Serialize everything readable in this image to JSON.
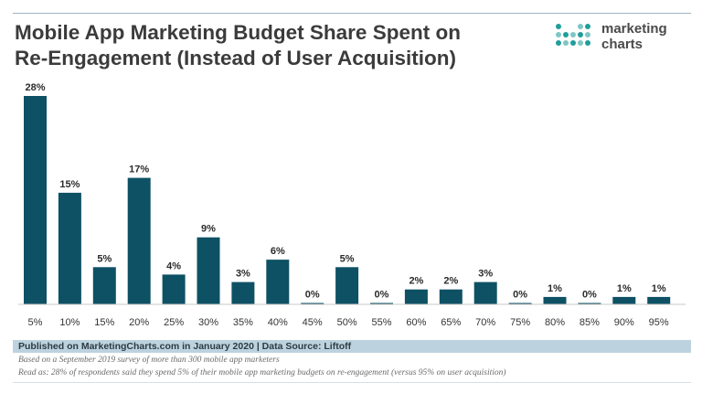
{
  "header": {
    "title_line1": "Mobile App Marketing Budget Share Spent on",
    "title_line2": "Re-Engagement (Instead of User Acquisition)"
  },
  "logo": {
    "line1": "marketing",
    "line2": "charts"
  },
  "colors": {
    "bar": "#0e5165",
    "logo_teal": "#1f9e9a",
    "logo_light": "#7fc6c4",
    "footer_bar": "#bcd3df"
  },
  "chart_data": {
    "type": "bar",
    "title": "Mobile App Marketing Budget Share Spent on Re-Engagement (Instead of User Acquisition)",
    "xlabel": "",
    "ylabel": "",
    "ylim": [
      0,
      28
    ],
    "categories": [
      "5%",
      "10%",
      "15%",
      "20%",
      "25%",
      "30%",
      "35%",
      "40%",
      "45%",
      "50%",
      "55%",
      "60%",
      "65%",
      "70%",
      "75%",
      "80%",
      "85%",
      "90%",
      "95%"
    ],
    "values": [
      28,
      15,
      5,
      17,
      4,
      9,
      3,
      6,
      0,
      5,
      0,
      2,
      2,
      3,
      0,
      1,
      0,
      1,
      1
    ],
    "labels": [
      "28%",
      "15%",
      "5%",
      "17%",
      "4%",
      "9%",
      "3%",
      "6%",
      "0%",
      "5%",
      "0%",
      "2%",
      "2%",
      "3%",
      "0%",
      "1%",
      "0%",
      "1%",
      "1%"
    ],
    "grid": false,
    "legend": "none"
  },
  "footer": {
    "source": "Published on MarketingCharts.com in January 2020 | Data Source: Liftoff",
    "note1": "Based on a September 2019 survey of more than 300 mobile app marketers",
    "note2": "Read as: 28% of respondents said they spend 5% of their mobile app marketing budgets on re-engagement (versus 95% on user acquisition)"
  }
}
